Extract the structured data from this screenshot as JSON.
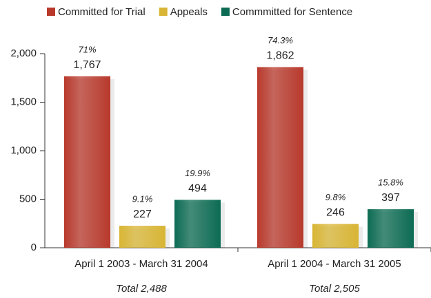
{
  "chart_data": {
    "type": "bar",
    "categories": [
      "April 1 2003 - March 31 2004",
      "April 1 2004 - March 31 2005"
    ],
    "totals": [
      "Total 2,488",
      "Total 2,505"
    ],
    "series": [
      {
        "name": "Committed for Trial",
        "color": "#b8392c",
        "values": [
          1767,
          1862
        ],
        "value_labels": [
          "1,767",
          "1,862"
        ],
        "percent_labels": [
          "71%",
          "74.3%"
        ]
      },
      {
        "name": "Appeals",
        "color": "#d8b534",
        "values": [
          227,
          246
        ],
        "percent_labels": [
          "9.1%",
          "9.8%"
        ]
      },
      {
        "name": "Commmitted for Sentence",
        "color": "#0c6b53",
        "values": [
          494,
          397
        ],
        "percent_labels": [
          "19.9%",
          "15.8%"
        ]
      }
    ],
    "ylim": [
      0,
      2000
    ],
    "yticks": [
      0,
      500,
      {
        "value": 1000,
        "label": "1,000"
      },
      {
        "value": 1500,
        "label": "1,500"
      },
      {
        "value": 2000,
        "label": "2,000"
      }
    ],
    "legend": "top"
  }
}
